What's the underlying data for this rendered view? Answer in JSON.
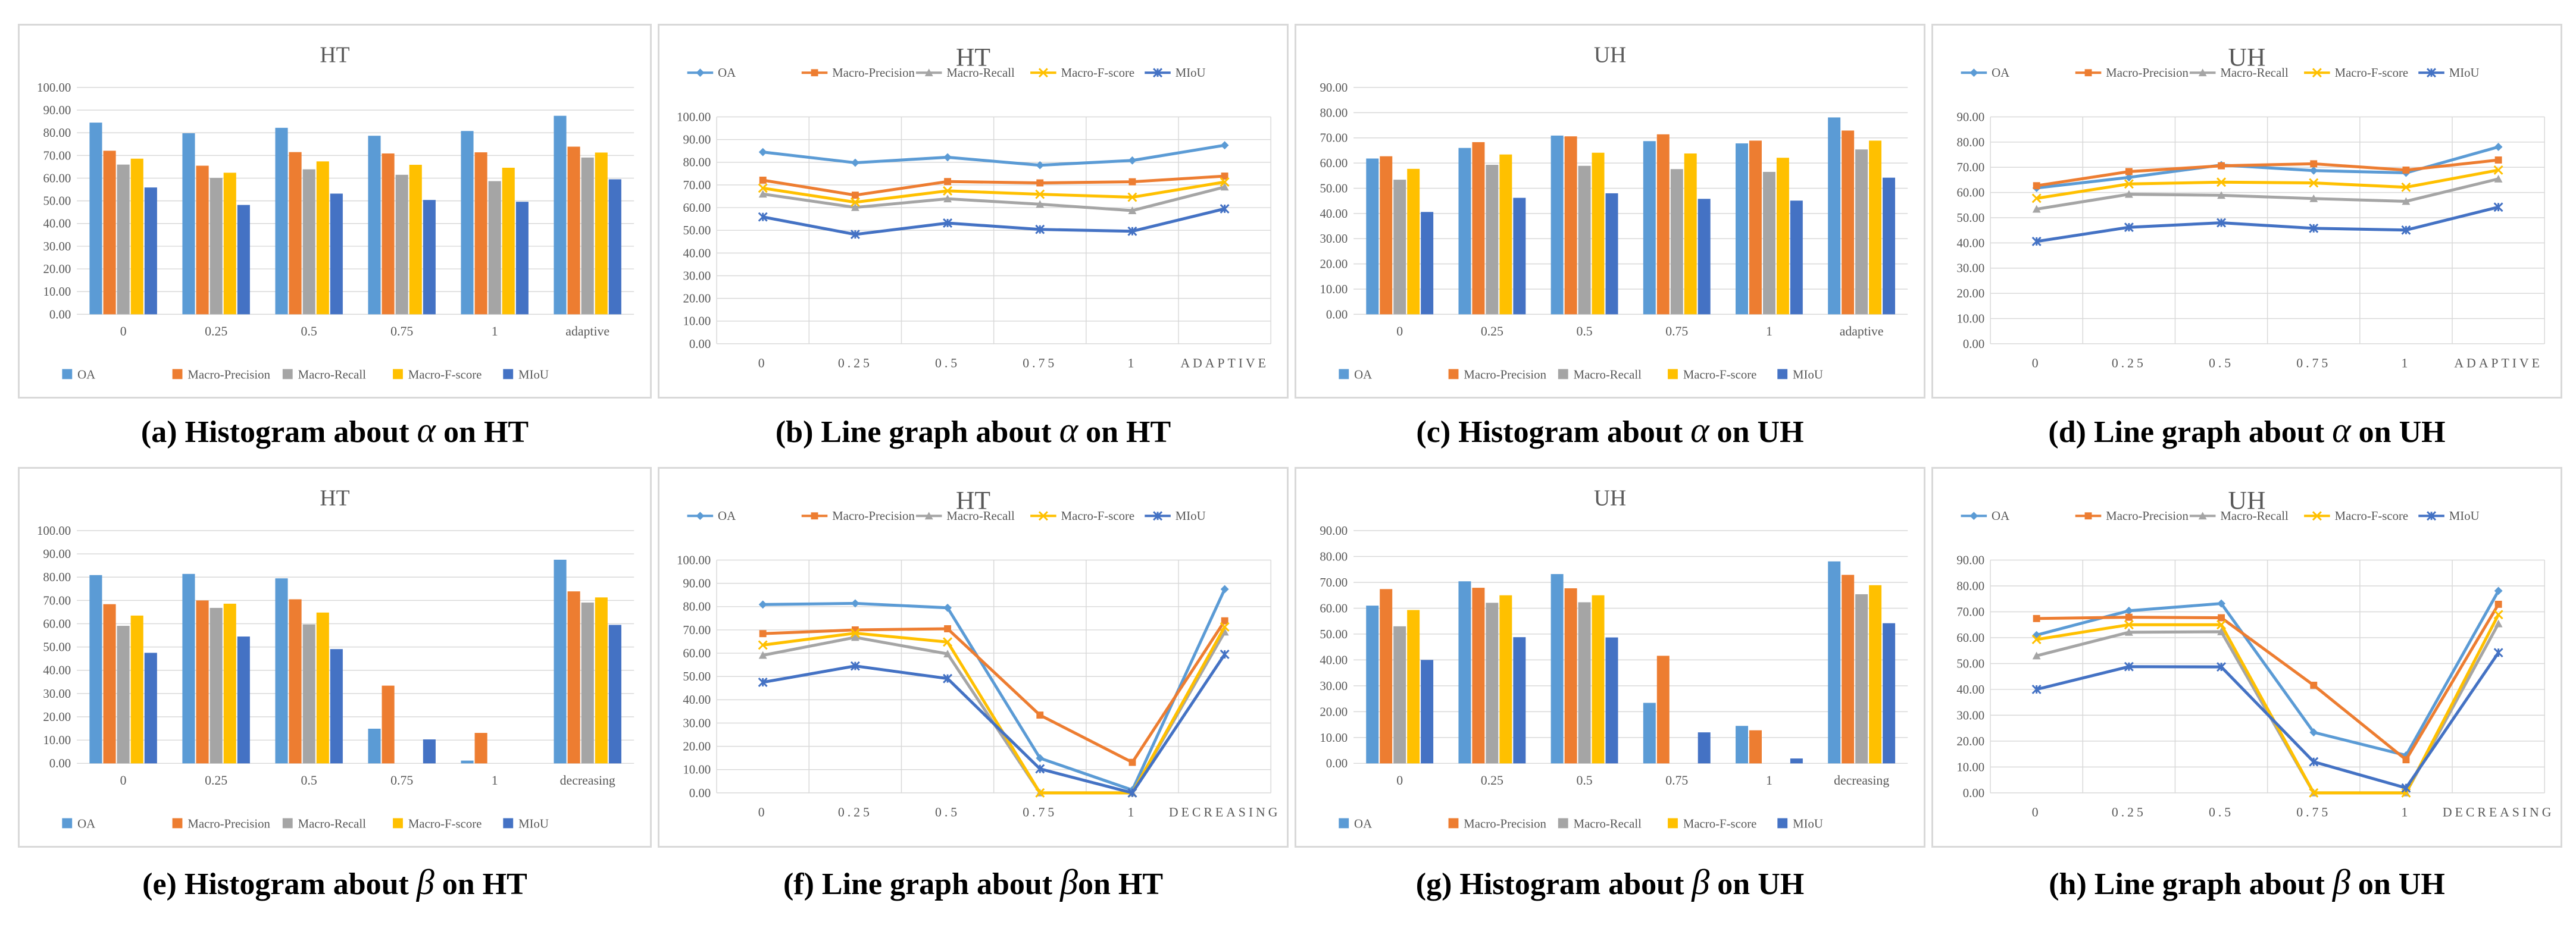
{
  "colors": {
    "OA": "#5B9BD5",
    "Macro-Precision": "#ED7D31",
    "Macro-Recall": "#A5A5A5",
    "Macro-F-score": "#FFC000",
    "MIoU": "#4472C4"
  },
  "chart_data": [
    {
      "id": "a",
      "type": "bar",
      "title": "HT",
      "caption": {
        "pre": "(a) Histogram about ",
        "sym": "α",
        "post": " on HT"
      },
      "categories": [
        "0",
        "0.25",
        "0.5",
        "0.75",
        "1",
        "adaptive"
      ],
      "ylim": [
        0,
        100
      ],
      "ystep": 10,
      "ytick_format": "0.00",
      "series": [
        {
          "name": "OA",
          "values": [
            84.5,
            79.8,
            82.2,
            78.7,
            80.8,
            87.5
          ]
        },
        {
          "name": "Macro-Precision",
          "values": [
            72.1,
            65.5,
            71.5,
            70.9,
            71.4,
            73.9
          ]
        },
        {
          "name": "Macro-Recall",
          "values": [
            66.0,
            60.1,
            63.9,
            61.5,
            58.7,
            69.1
          ]
        },
        {
          "name": "Macro-F-score",
          "values": [
            68.6,
            62.4,
            67.4,
            65.9,
            64.6,
            71.3
          ]
        },
        {
          "name": "MIoU",
          "values": [
            55.9,
            48.2,
            53.2,
            50.4,
            49.6,
            59.5
          ]
        }
      ]
    },
    {
      "id": "b",
      "type": "line",
      "title": "HT",
      "caption": {
        "pre": "(b) Line graph about ",
        "sym": "α",
        "post": " on HT"
      },
      "categories": [
        "0",
        "0.25",
        "0.5",
        "0.75",
        "1",
        "ADAPTIVE"
      ],
      "ylim": [
        0,
        100
      ],
      "ystep": 10,
      "ytick_format": "0.00",
      "series": [
        {
          "name": "OA",
          "values": [
            84.5,
            79.8,
            82.2,
            78.7,
            80.8,
            87.5
          ]
        },
        {
          "name": "Macro-Precision",
          "values": [
            72.1,
            65.5,
            71.5,
            70.9,
            71.4,
            73.9
          ]
        },
        {
          "name": "Macro-Recall",
          "values": [
            66.0,
            60.1,
            63.9,
            61.5,
            58.7,
            69.1
          ]
        },
        {
          "name": "Macro-F-score",
          "values": [
            68.6,
            62.4,
            67.4,
            65.9,
            64.6,
            71.3
          ]
        },
        {
          "name": "MIoU",
          "values": [
            55.9,
            48.2,
            53.2,
            50.4,
            49.6,
            59.5
          ]
        }
      ]
    },
    {
      "id": "c",
      "type": "bar",
      "title": "UH",
      "caption": {
        "pre": "(c) Histogram about ",
        "sym": "α",
        "post": " on UH"
      },
      "categories": [
        "0",
        "0.25",
        "0.5",
        "0.75",
        "1",
        "adaptive"
      ],
      "ylim": [
        0,
        90
      ],
      "ystep": 10,
      "ytick_format": "0.00",
      "series": [
        {
          "name": "OA",
          "values": [
            61.8,
            66.0,
            70.9,
            68.7,
            67.8,
            78.1
          ]
        },
        {
          "name": "Macro-Precision",
          "values": [
            62.7,
            68.3,
            70.6,
            71.4,
            68.9,
            72.9
          ]
        },
        {
          "name": "Macro-Recall",
          "values": [
            53.4,
            59.3,
            58.9,
            57.6,
            56.5,
            65.4
          ]
        },
        {
          "name": "Macro-F-score",
          "values": [
            57.7,
            63.4,
            64.1,
            63.8,
            62.1,
            68.9
          ]
        },
        {
          "name": "MIoU",
          "values": [
            40.6,
            46.2,
            48.0,
            45.8,
            45.1,
            54.2
          ]
        }
      ]
    },
    {
      "id": "d",
      "type": "line",
      "title": "UH",
      "caption": {
        "pre": "(d) Line graph about ",
        "sym": "α",
        "post": " on UH"
      },
      "categories": [
        "0",
        "0.25",
        "0.5",
        "0.75",
        "1",
        "ADAPTIVE"
      ],
      "ylim": [
        0,
        90
      ],
      "ystep": 10,
      "ytick_format": "0.00",
      "series": [
        {
          "name": "OA",
          "values": [
            61.8,
            66.0,
            70.9,
            68.7,
            67.8,
            78.1
          ]
        },
        {
          "name": "Macro-Precision",
          "values": [
            62.7,
            68.3,
            70.6,
            71.4,
            68.9,
            72.9
          ]
        },
        {
          "name": "Macro-Recall",
          "values": [
            53.4,
            59.3,
            58.9,
            57.6,
            56.5,
            65.4
          ]
        },
        {
          "name": "Macro-F-score",
          "values": [
            57.7,
            63.4,
            64.1,
            63.8,
            62.1,
            68.9
          ]
        },
        {
          "name": "MIoU",
          "values": [
            40.6,
            46.2,
            48.0,
            45.8,
            45.1,
            54.2
          ]
        }
      ]
    },
    {
      "id": "e",
      "type": "bar",
      "title": "HT",
      "caption": {
        "pre": "(e) Histogram about ",
        "sym": "β",
        "post": " on HT"
      },
      "categories": [
        "0",
        "0.25",
        "0.5",
        "0.75",
        "1",
        "decreasing"
      ],
      "ylim": [
        0,
        100
      ],
      "ystep": 10,
      "ytick_format": "0.00",
      "series": [
        {
          "name": "OA",
          "values": [
            80.9,
            81.4,
            79.5,
            14.9,
            1.2,
            87.5
          ]
        },
        {
          "name": "Macro-Precision",
          "values": [
            68.4,
            70.0,
            70.5,
            33.4,
            13.1,
            73.9
          ]
        },
        {
          "name": "Macro-Recall",
          "values": [
            59.1,
            66.8,
            59.7,
            0.0,
            0.0,
            69.1
          ]
        },
        {
          "name": "Macro-F-score",
          "values": [
            63.5,
            68.6,
            64.8,
            0.0,
            0.0,
            71.3
          ]
        },
        {
          "name": "MIoU",
          "values": [
            47.5,
            54.5,
            49.1,
            10.3,
            0.0,
            59.5
          ]
        }
      ]
    },
    {
      "id": "f",
      "type": "line",
      "title": "HT",
      "caption": {
        "pre": "(f) Line graph about ",
        "sym": "β",
        "post": "on HT"
      },
      "categories": [
        "0",
        "0.25",
        "0.5",
        "0.75",
        "1",
        "DECREASING"
      ],
      "ylim": [
        0,
        100
      ],
      "ystep": 10,
      "ytick_format": "0.00",
      "series": [
        {
          "name": "OA",
          "values": [
            80.9,
            81.4,
            79.5,
            14.9,
            1.2,
            87.5
          ]
        },
        {
          "name": "Macro-Precision",
          "values": [
            68.4,
            70.0,
            70.5,
            33.4,
            13.1,
            73.9
          ]
        },
        {
          "name": "Macro-Recall",
          "values": [
            59.1,
            66.8,
            59.7,
            0.0,
            0.0,
            69.1
          ]
        },
        {
          "name": "Macro-F-score",
          "values": [
            63.5,
            68.6,
            64.8,
            0.0,
            0.0,
            71.3
          ]
        },
        {
          "name": "MIoU",
          "values": [
            47.5,
            54.5,
            49.1,
            10.3,
            0.0,
            59.5
          ]
        }
      ]
    },
    {
      "id": "g",
      "type": "bar",
      "title": "UH",
      "caption": {
        "pre": "(g) Histogram about ",
        "sym": "β",
        "post": " on UH"
      },
      "categories": [
        "0",
        "0.25",
        "0.5",
        "0.75",
        "1",
        "decreasing"
      ],
      "ylim": [
        0,
        90
      ],
      "ystep": 10,
      "ytick_format": "0.00",
      "series": [
        {
          "name": "OA",
          "values": [
            61.0,
            70.4,
            73.2,
            23.4,
            14.5,
            78.1
          ]
        },
        {
          "name": "Macro-Precision",
          "values": [
            67.4,
            67.9,
            67.7,
            41.6,
            12.8,
            72.9
          ]
        },
        {
          "name": "Macro-Recall",
          "values": [
            53.0,
            62.1,
            62.3,
            0.0,
            0.0,
            65.4
          ]
        },
        {
          "name": "Macro-F-score",
          "values": [
            59.3,
            65.0,
            65.0,
            0.0,
            0.0,
            68.9
          ]
        },
        {
          "name": "MIoU",
          "values": [
            40.0,
            48.8,
            48.7,
            12.0,
            1.9,
            54.2
          ]
        }
      ]
    },
    {
      "id": "h",
      "type": "line",
      "title": "UH",
      "caption": {
        "pre": "(h) Line graph about ",
        "sym": "β",
        "post": " on UH"
      },
      "categories": [
        "0",
        "0.25",
        "0.5",
        "0.75",
        "1",
        "DECREASING"
      ],
      "ylim": [
        0,
        90
      ],
      "ystep": 10,
      "ytick_format": "0.00",
      "series": [
        {
          "name": "OA",
          "values": [
            61.0,
            70.4,
            73.2,
            23.4,
            14.5,
            78.1
          ]
        },
        {
          "name": "Macro-Precision",
          "values": [
            67.4,
            67.9,
            67.7,
            41.6,
            12.8,
            72.9
          ]
        },
        {
          "name": "Macro-Recall",
          "values": [
            53.0,
            62.1,
            62.3,
            0.0,
            0.0,
            65.4
          ]
        },
        {
          "name": "Macro-F-score",
          "values": [
            59.3,
            65.0,
            65.0,
            0.0,
            0.0,
            68.9
          ]
        },
        {
          "name": "MIoU",
          "values": [
            40.0,
            48.8,
            48.7,
            12.0,
            1.9,
            54.2
          ]
        }
      ]
    }
  ]
}
